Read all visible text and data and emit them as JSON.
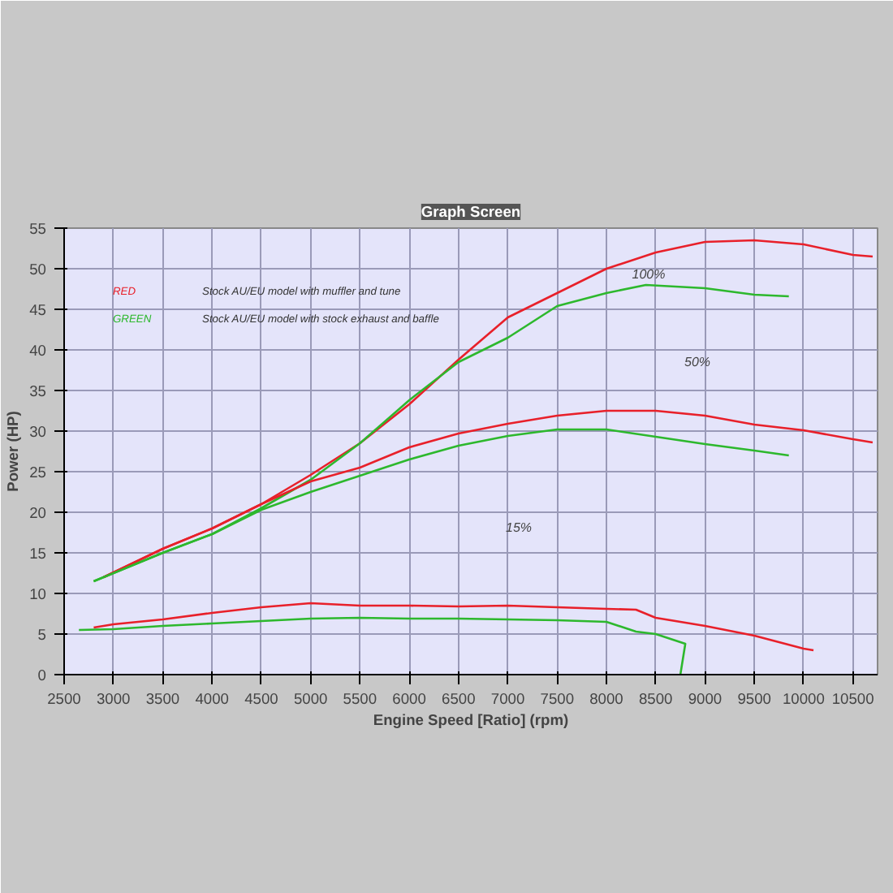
{
  "chart_data": {
    "type": "line",
    "title": "Graph Screen",
    "xlabel": "Engine Speed [Ratio] (rpm)",
    "ylabel": "Power (HP)",
    "xlim": [
      2500,
      10750
    ],
    "ylim": [
      0,
      55
    ],
    "xticks": [
      2500,
      3000,
      3500,
      4000,
      4500,
      5000,
      5500,
      6000,
      6500,
      7000,
      7500,
      8000,
      8500,
      9000,
      9500,
      10000,
      10500
    ],
    "yticks": [
      0,
      5,
      10,
      15,
      20,
      25,
      30,
      35,
      40,
      45,
      50,
      55
    ],
    "grid": true,
    "line_style": "solid",
    "annotations": [
      "RED",
      "Stock AU/EU model with muffler and tune",
      "GREEN",
      "Stock AU/EU model with stock exhaust and baffle",
      "100%",
      "50%",
      "15%"
    ],
    "series": [
      {
        "color": "#e8202a",
        "x": [
          2900,
          3500,
          4000,
          4500,
          5000,
          5500,
          6000,
          6500,
          7000,
          7500,
          8000,
          8500,
          9000,
          9500,
          10000,
          10500,
          10700
        ],
        "values": [
          12,
          15.5,
          18,
          21,
          24.6,
          28.5,
          33.3,
          38.8,
          44,
          47,
          50,
          52,
          53.3,
          53.5,
          53,
          51.7,
          51.5
        ]
      },
      {
        "color": "#2db82d",
        "x": [
          2800,
          3500,
          4000,
          4500,
          5000,
          5500,
          6000,
          6500,
          7000,
          7500,
          8000,
          8400,
          9000,
          9500,
          9850
        ],
        "values": [
          11.5,
          15,
          17.3,
          20.5,
          24,
          28.5,
          33.8,
          38.5,
          41.5,
          45.4,
          47,
          48,
          47.6,
          46.8,
          46.6
        ]
      },
      {
        "color": "#e8202a",
        "x": [
          2900,
          3500,
          4000,
          4500,
          5000,
          5500,
          6000,
          6500,
          7000,
          7500,
          8000,
          8500,
          9000,
          9500,
          10000,
          10500,
          10700
        ],
        "values": [
          12,
          15.5,
          18,
          21,
          23.8,
          25.5,
          28,
          29.7,
          30.9,
          31.9,
          32.5,
          32.5,
          31.9,
          30.8,
          30.1,
          29,
          28.6
        ]
      },
      {
        "color": "#2db82d",
        "x": [
          2800,
          3500,
          4000,
          4500,
          5000,
          5500,
          6000,
          6500,
          7000,
          7500,
          8000,
          8500,
          9000,
          9500,
          9850
        ],
        "values": [
          11.5,
          15,
          17.3,
          20.3,
          22.5,
          24.5,
          26.5,
          28.2,
          29.4,
          30.2,
          30.2,
          29.3,
          28.4,
          27.6,
          27
        ]
      },
      {
        "color": "#e8202a",
        "x": [
          2800,
          3000,
          3500,
          4000,
          4500,
          5000,
          5500,
          6000,
          6500,
          7000,
          7500,
          8000,
          8300,
          8500,
          9000,
          9500,
          10000,
          10100
        ],
        "values": [
          5.8,
          6.2,
          6.8,
          7.6,
          8.3,
          8.8,
          8.5,
          8.5,
          8.4,
          8.5,
          8.3,
          8.1,
          8,
          7,
          6,
          4.8,
          3.2,
          3
        ]
      },
      {
        "color": "#2db82d",
        "x": [
          2650,
          3000,
          3500,
          4000,
          4500,
          5000,
          5500,
          6000,
          6500,
          7000,
          7500,
          8000,
          8300,
          8500,
          8750,
          8800,
          8750
        ],
        "values": [
          5.5,
          5.6,
          6,
          6.3,
          6.6,
          6.9,
          7,
          6.9,
          6.9,
          6.8,
          6.7,
          6.5,
          5.3,
          5,
          4,
          3.8,
          0
        ]
      }
    ]
  }
}
